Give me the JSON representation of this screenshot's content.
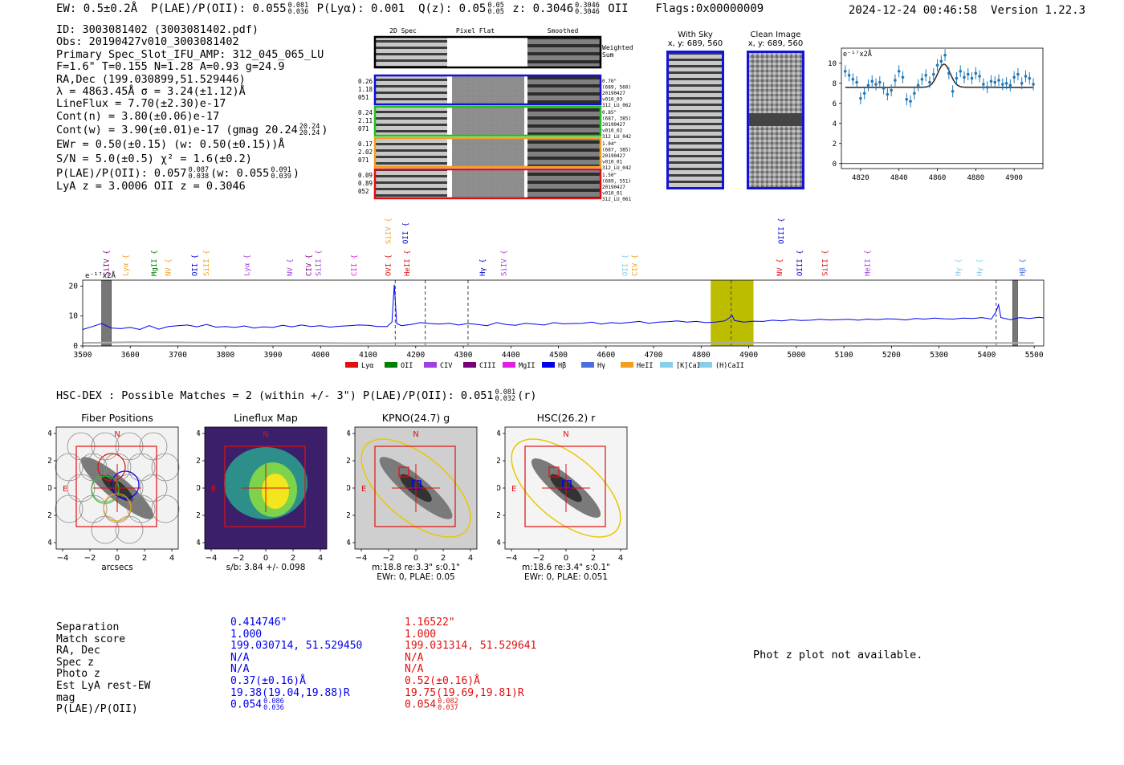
{
  "header": {
    "ew": "EW: 0.5±0.2Å",
    "plae_label": "P(LAE)/P(OII): 0.055",
    "plae_hi": "0.081",
    "plae_lo": "0.036",
    "plya": "P(Lyα): 0.001",
    "qz_label": "Q(z): 0.05",
    "qz_hi": "0.05",
    "qz_lo": "0.05",
    "z_label": "z: 0.3046",
    "z_hi": "0.3046",
    "z_lo": "0.3046",
    "z_line": "OII",
    "flags": "Flags:0x00000009",
    "datetime": "2024-12-24 00:46:58",
    "version": "Version 1.22.3"
  },
  "info": {
    "id": "ID: 3003081402 (3003081402.pdf)",
    "obs": "Obs: 20190427v010_3003081402",
    "primary": "Primary Spec_Slot_IFU_AMP: 312_045_065_LU",
    "params": "F=1.6\"  T=0.155  N=1.28  A=0.93  g=24.9",
    "radec": "RA,Dec (199.030899,51.529446)",
    "lambda": "λ = 4863.45Å  σ = 3.24(±1.12)Å",
    "lineflux": "LineFlux = 7.70(±2.30)e-17",
    "contn": "Cont(n) = 3.80(±0.06)e-17",
    "contw_a": "Cont(w) = 3.90(±0.01)e-17 (gmag 20.24",
    "contw_hi": "20.24",
    "contw_lo": "20.24",
    "contw_b": ")",
    "ewr": "EWr = 0.50(±0.15) (w: 0.50(±0.15))Å",
    "sn": "S/N = 5.0(±0.5)  χ² = 1.6(±0.2)",
    "plae_a": "P(LAE)/P(OII): 0.057",
    "plae_hi": "0.087",
    "plae_lo": "0.038",
    "plae_b": "(w: 0.055",
    "plae_whi": "0.091",
    "plae_wlo": "0.039",
    "plae_c": ")",
    "lyaz": "LyA z = 3.0006  OII z = 0.3046"
  },
  "cutouts": {
    "col_2d": "2D Spec",
    "col_flat": "Pixel Flat",
    "col_smooth": "Smoothed",
    "weighted_sum": "Weighted\nSum",
    "rows": [
      {
        "left": [
          "0.26",
          "1.18",
          "051"
        ],
        "right": [
          "0.70\"",
          "(689, 560)",
          "20190427",
          "v010_03",
          "312_LU_062"
        ],
        "color": "#1010d8"
      },
      {
        "left": [
          "0.24",
          "2.11",
          "071"
        ],
        "right": [
          "0.85\"",
          "(687, 385)",
          "20190427",
          "v010_02",
          "312_LU_042"
        ],
        "color": "#22c022"
      },
      {
        "left": [
          "0.17",
          "2.02",
          "071"
        ],
        "right": [
          "1.04\"",
          "(687, 385)",
          "20190427",
          "v010_01",
          "312_LU_042"
        ],
        "color": "#f0a020"
      },
      {
        "left": [
          "0.09",
          "0.89",
          "052"
        ],
        "right": [
          "1.50\"",
          "(689, 551)",
          "20190427",
          "v010_01",
          "312_LU_061"
        ],
        "color": "#e01010"
      }
    ]
  },
  "with_sky": {
    "title": "With Sky",
    "coords": "x, y: 689, 560"
  },
  "clean_image": {
    "title": "Clean Image",
    "coords": "x, y: 689, 560"
  },
  "zoom_plot": {
    "ylabel": "e⁻¹⁷x2Å",
    "xticks": [
      "4820",
      "4840",
      "4860",
      "4880",
      "4900"
    ],
    "yticks": [
      "0",
      "2",
      "4",
      "6",
      "8",
      "10"
    ]
  },
  "full_spec": {
    "ylabel": "e⁻¹⁷x2Å",
    "xticks": [
      "3500",
      "3600",
      "3700",
      "3800",
      "3900",
      "4000",
      "4100",
      "4200",
      "4300",
      "4400",
      "4500",
      "4600",
      "4700",
      "4800",
      "4900",
      "5000",
      "5100",
      "5200",
      "5300",
      "5400",
      "5500"
    ],
    "yticks": [
      "0",
      "10",
      "20"
    ],
    "line_labels": [
      {
        "text": "SiIV",
        "wl": 3550,
        "color": "#7a007a",
        "row": 0
      },
      {
        "text": "Lyα",
        "wl": 3590,
        "color": "#f0a020",
        "row": 0
      },
      {
        "text": "MgII",
        "wl": 3650,
        "color": "#008000",
        "row": 0
      },
      {
        "text": "NV",
        "wl": 3680,
        "color": "#f0a020",
        "row": 0
      },
      {
        "text": "OII",
        "wl": 3735,
        "color": "#0000cc",
        "row": 0
      },
      {
        "text": "SiII",
        "wl": 3760,
        "color": "#f0a020",
        "row": 0
      },
      {
        "text": "Lyα",
        "wl": 3845,
        "color": "#a040e0",
        "row": 0
      },
      {
        "text": "NV",
        "wl": 3935,
        "color": "#a040e0",
        "row": 0
      },
      {
        "text": "CIV",
        "wl": 3975,
        "color": "#7a007a",
        "row": 0
      },
      {
        "text": "SiII",
        "wl": 3995,
        "color": "#a040e0",
        "row": 0
      },
      {
        "text": "CII",
        "wl": 4070,
        "color": "#e020e0",
        "row": 0
      },
      {
        "text": "OVI",
        "wl": 4142,
        "color": "#e01010",
        "row": 0
      },
      {
        "text": "HeII",
        "wl": 4182,
        "color": "#e01010",
        "row": 0
      },
      {
        "text": "SiIV",
        "wl": 4142,
        "color": "#f0a020",
        "row": 1
      },
      {
        "text": "OII",
        "wl": 4178,
        "color": "#0000cc",
        "row": 1
      },
      {
        "text": "Hγ",
        "wl": 4340,
        "color": "#0000cc",
        "row": 0
      },
      {
        "text": "SiIV",
        "wl": 4385,
        "color": "#a040e0",
        "row": 0
      },
      {
        "text": "OII",
        "wl": 4640,
        "color": "#87ceeb",
        "row": 0
      },
      {
        "text": "CIV",
        "wl": 4660,
        "color": "#f0a020",
        "row": 0
      },
      {
        "text": "NV",
        "wl": 4965,
        "color": "#e01010",
        "row": 0
      },
      {
        "text": "OIII",
        "wl": 5007,
        "color": "#0000cc",
        "row": 0
      },
      {
        "text": "SiII",
        "wl": 5060,
        "color": "#e01010",
        "row": 0
      },
      {
        "text": "HeII",
        "wl": 5150,
        "color": "#a040e0",
        "row": 0
      },
      {
        "text": "OIII",
        "wl": 4968,
        "color": "#0000cc",
        "row": 1
      },
      {
        "text": "Hγ",
        "wl": 5340,
        "color": "#87ceeb",
        "row": 0
      },
      {
        "text": "Hγ",
        "wl": 5385,
        "color": "#87ceeb",
        "row": 0
      },
      {
        "text": "Hβ",
        "wl": 5475,
        "color": "#4a6fe0",
        "row": 0
      }
    ],
    "legend": [
      {
        "label": "Lyα",
        "color": "#e01010"
      },
      {
        "label": "OII",
        "color": "#008000"
      },
      {
        "label": "CIV",
        "color": "#a040e0"
      },
      {
        "label": "CIII",
        "color": "#7a007a"
      },
      {
        "label": "MgII",
        "color": "#e020e0"
      },
      {
        "label": "Hβ",
        "color": "#0000ee"
      },
      {
        "label": "Hγ",
        "color": "#4a6fe0"
      },
      {
        "label": "HeII",
        "color": "#f0a020"
      },
      {
        "label": "[K]CaII",
        "color": "#87ceeb"
      },
      {
        "label": "(H)CaII",
        "color": "#87ceeb"
      }
    ]
  },
  "chart_data": [
    {
      "type": "scatter",
      "title": "",
      "xlabel": "",
      "ylabel": "e-17x2Å",
      "xlim": [
        4810,
        4915
      ],
      "ylim": [
        -0.5,
        11.5
      ],
      "x": [
        4812,
        4814,
        4816,
        4818,
        4820,
        4822,
        4824,
        4826,
        4828,
        4830,
        4832,
        4834,
        4836,
        4838,
        4840,
        4842,
        4844,
        4846,
        4848,
        4850,
        4852,
        4854,
        4856,
        4858,
        4860,
        4862,
        4864,
        4866,
        4868,
        4870,
        4872,
        4874,
        4876,
        4878,
        4880,
        4882,
        4884,
        4886,
        4888,
        4890,
        4892,
        4894,
        4896,
        4898,
        4900,
        4902,
        4904,
        4906,
        4908,
        4910
      ],
      "y": [
        9.2,
        8.8,
        8.4,
        8.1,
        6.5,
        7.0,
        7.8,
        8.2,
        7.9,
        8.1,
        7.5,
        6.9,
        7.3,
        8.3,
        9.2,
        8.6,
        6.4,
        6.2,
        7.0,
        7.8,
        8.4,
        8.8,
        8.1,
        8.9,
        9.8,
        10.2,
        10.8,
        9.0,
        7.2,
        8.5,
        9.2,
        8.6,
        8.9,
        8.5,
        9.0,
        8.7,
        7.9,
        7.6,
        8.2,
        8.1,
        8.3,
        7.9,
        8.0,
        7.8,
        8.6,
        8.9,
        8.0,
        8.7,
        8.5,
        7.9
      ],
      "errors": [
        0.6,
        0.6,
        0.6,
        0.6,
        0.6,
        0.6,
        0.6,
        0.6,
        0.6,
        0.6,
        0.6,
        0.6,
        0.6,
        0.6,
        0.6,
        0.6,
        0.6,
        0.6,
        0.6,
        0.6,
        0.6,
        0.6,
        0.6,
        0.6,
        0.6,
        0.6,
        0.6,
        0.6,
        0.6,
        0.6,
        0.6,
        0.6,
        0.6,
        0.6,
        0.6,
        0.6,
        0.6,
        0.6,
        0.6,
        0.6,
        0.6,
        0.6,
        0.6,
        0.6,
        0.6,
        0.6,
        0.6,
        0.6,
        0.6,
        0.6
      ],
      "fit": {
        "continuum": 7.6,
        "amplitude": 2.3,
        "center": 4863.45,
        "sigma": 3.24
      }
    },
    {
      "type": "line",
      "title": "",
      "xlabel": "",
      "ylabel": "e-17x2Å",
      "xlim": [
        3500,
        5520
      ],
      "ylim": [
        0,
        22
      ],
      "series": [
        {
          "name": "spectrum",
          "color": "#0000ee",
          "x": [
            3500,
            3520,
            3540,
            3560,
            3580,
            3600,
            3620,
            3640,
            3660,
            3680,
            3700,
            3720,
            3740,
            3760,
            3780,
            3800,
            3820,
            3840,
            3860,
            3880,
            3900,
            3920,
            3940,
            3960,
            3980,
            4000,
            4020,
            4040,
            4060,
            4080,
            4100,
            4120,
            4140,
            4150,
            4155,
            4160,
            4170,
            4190,
            4210,
            4230,
            4250,
            4270,
            4290,
            4310,
            4330,
            4350,
            4370,
            4390,
            4410,
            4430,
            4450,
            4470,
            4490,
            4510,
            4530,
            4550,
            4570,
            4590,
            4610,
            4630,
            4650,
            4670,
            4690,
            4710,
            4730,
            4750,
            4770,
            4790,
            4810,
            4830,
            4850,
            4860,
            4865,
            4870,
            4890,
            4910,
            4930,
            4950,
            4970,
            4990,
            5010,
            5030,
            5050,
            5070,
            5090,
            5110,
            5130,
            5150,
            5170,
            5190,
            5210,
            5230,
            5250,
            5270,
            5290,
            5310,
            5330,
            5350,
            5370,
            5390,
            5410,
            5420,
            5425,
            5430,
            5450,
            5470,
            5490,
            5510,
            5520
          ],
          "y": [
            5.5,
            6.5,
            7.5,
            6.0,
            5.8,
            6.2,
            5.5,
            6.8,
            5.6,
            6.5,
            6.8,
            7.0,
            6.4,
            7.2,
            6.3,
            6.5,
            6.2,
            6.7,
            6.0,
            6.4,
            6.2,
            6.9,
            6.4,
            7.0,
            6.5,
            6.8,
            6.3,
            6.6,
            6.8,
            7.0,
            6.9,
            6.5,
            6.5,
            8.0,
            20.5,
            7.5,
            6.8,
            7.2,
            7.8,
            7.5,
            7.3,
            7.6,
            7.0,
            7.5,
            7.2,
            6.8,
            7.8,
            7.2,
            6.9,
            7.6,
            7.3,
            7.0,
            7.8,
            7.4,
            7.5,
            7.6,
            8.0,
            7.3,
            7.8,
            7.6,
            7.9,
            8.2,
            7.6,
            8.0,
            8.1,
            8.4,
            8.0,
            8.2,
            7.8,
            8.0,
            8.4,
            9.5,
            10.2,
            8.5,
            8.0,
            8.3,
            8.2,
            8.6,
            8.4,
            8.8,
            8.5,
            8.6,
            8.9,
            8.7,
            8.8,
            8.9,
            8.6,
            9.0,
            8.8,
            9.1,
            9.0,
            8.7,
            9.2,
            9.0,
            9.3,
            9.1,
            9.0,
            9.3,
            9.2,
            9.5,
            9.0,
            11.5,
            13.8,
            9.5,
            8.8,
            9.5,
            9.2,
            9.6,
            9.4
          ]
        },
        {
          "name": "sky",
          "color": "#aaaaaa",
          "x": [
            3500,
            3600,
            3700,
            3800,
            3900,
            4000,
            4100,
            4200,
            4300,
            4400,
            4500,
            4600,
            4700,
            4800,
            4900,
            5000,
            5100,
            5200,
            5300,
            5400,
            5500
          ],
          "y": [
            1.0,
            1.3,
            1.2,
            1.1,
            1.0,
            1.0,
            0.9,
            1.0,
            1.0,
            0.9,
            0.9,
            1.0,
            1.0,
            1.0,
            1.1,
            1.0,
            1.0,
            1.1,
            1.0,
            1.0,
            1.0
          ]
        }
      ],
      "highlight_band": [
        4820,
        4910
      ],
      "dashed_lines": [
        4157,
        4220,
        4310,
        4863,
        5420
      ],
      "hatched_regions": [
        [
          3540,
          3560
        ],
        [
          5455,
          5465
        ]
      ]
    }
  ],
  "hscdex": {
    "title_a": "HSC-DEX : Possible Matches = 2 (within +/- 3\")  P(LAE)/P(OII): 0.051",
    "title_hi": "0.081",
    "title_lo": "0.032",
    "title_b": "(r)"
  },
  "panels": [
    {
      "title": "Fiber Positions",
      "cap1": "arcsecs",
      "cap2": "",
      "cap3": ""
    },
    {
      "title": "Lineflux Map",
      "cap1": "s/b: 3.84 +/- 0.098",
      "cap2": "",
      "cap3": ""
    },
    {
      "title": "KPNO(24.7) g",
      "cap1": "m:18.8  re:3.3\"  s:0.1\"",
      "cap2": "EWr: 0, PLAE: 0.05",
      "cap3": ""
    },
    {
      "title": "HSC(26.2) r",
      "cap1": "m:18.6  re:3.4\"  s:0.1\"",
      "cap2": "EWr: 0, PLAE: 0.051",
      "cap3": ""
    }
  ],
  "panel_axis": {
    "ticks": [
      "−4",
      "−2",
      "0",
      "2",
      "4"
    ],
    "north": "N",
    "east": "E"
  },
  "comparison": {
    "labels": [
      "Separation",
      "Match score",
      "RA, Dec",
      "Spec z",
      "Photo z",
      "Est LyA rest-EW",
      "mag",
      "P(LAE)/P(OII)"
    ],
    "blue": [
      "0.414746\"",
      "1.000",
      "199.030714, 51.529450",
      "N/A",
      "N/A",
      "0.37(±0.16)Å",
      "19.38(19.04,19.88)R",
      "0.054"
    ],
    "blue_hi": "0.086",
    "blue_lo": "0.036",
    "red": [
      "1.16522\"",
      "1.000",
      "199.031314, 51.529641",
      "N/A",
      "N/A",
      "0.52(±0.16)Å",
      "19.75(19.69,19.81)R",
      "0.054"
    ],
    "red_hi": "0.082",
    "red_lo": "0.037",
    "colors": {
      "blue": "#0000ee",
      "red": "#e01010"
    }
  },
  "photz_note": "Phot z plot not available."
}
